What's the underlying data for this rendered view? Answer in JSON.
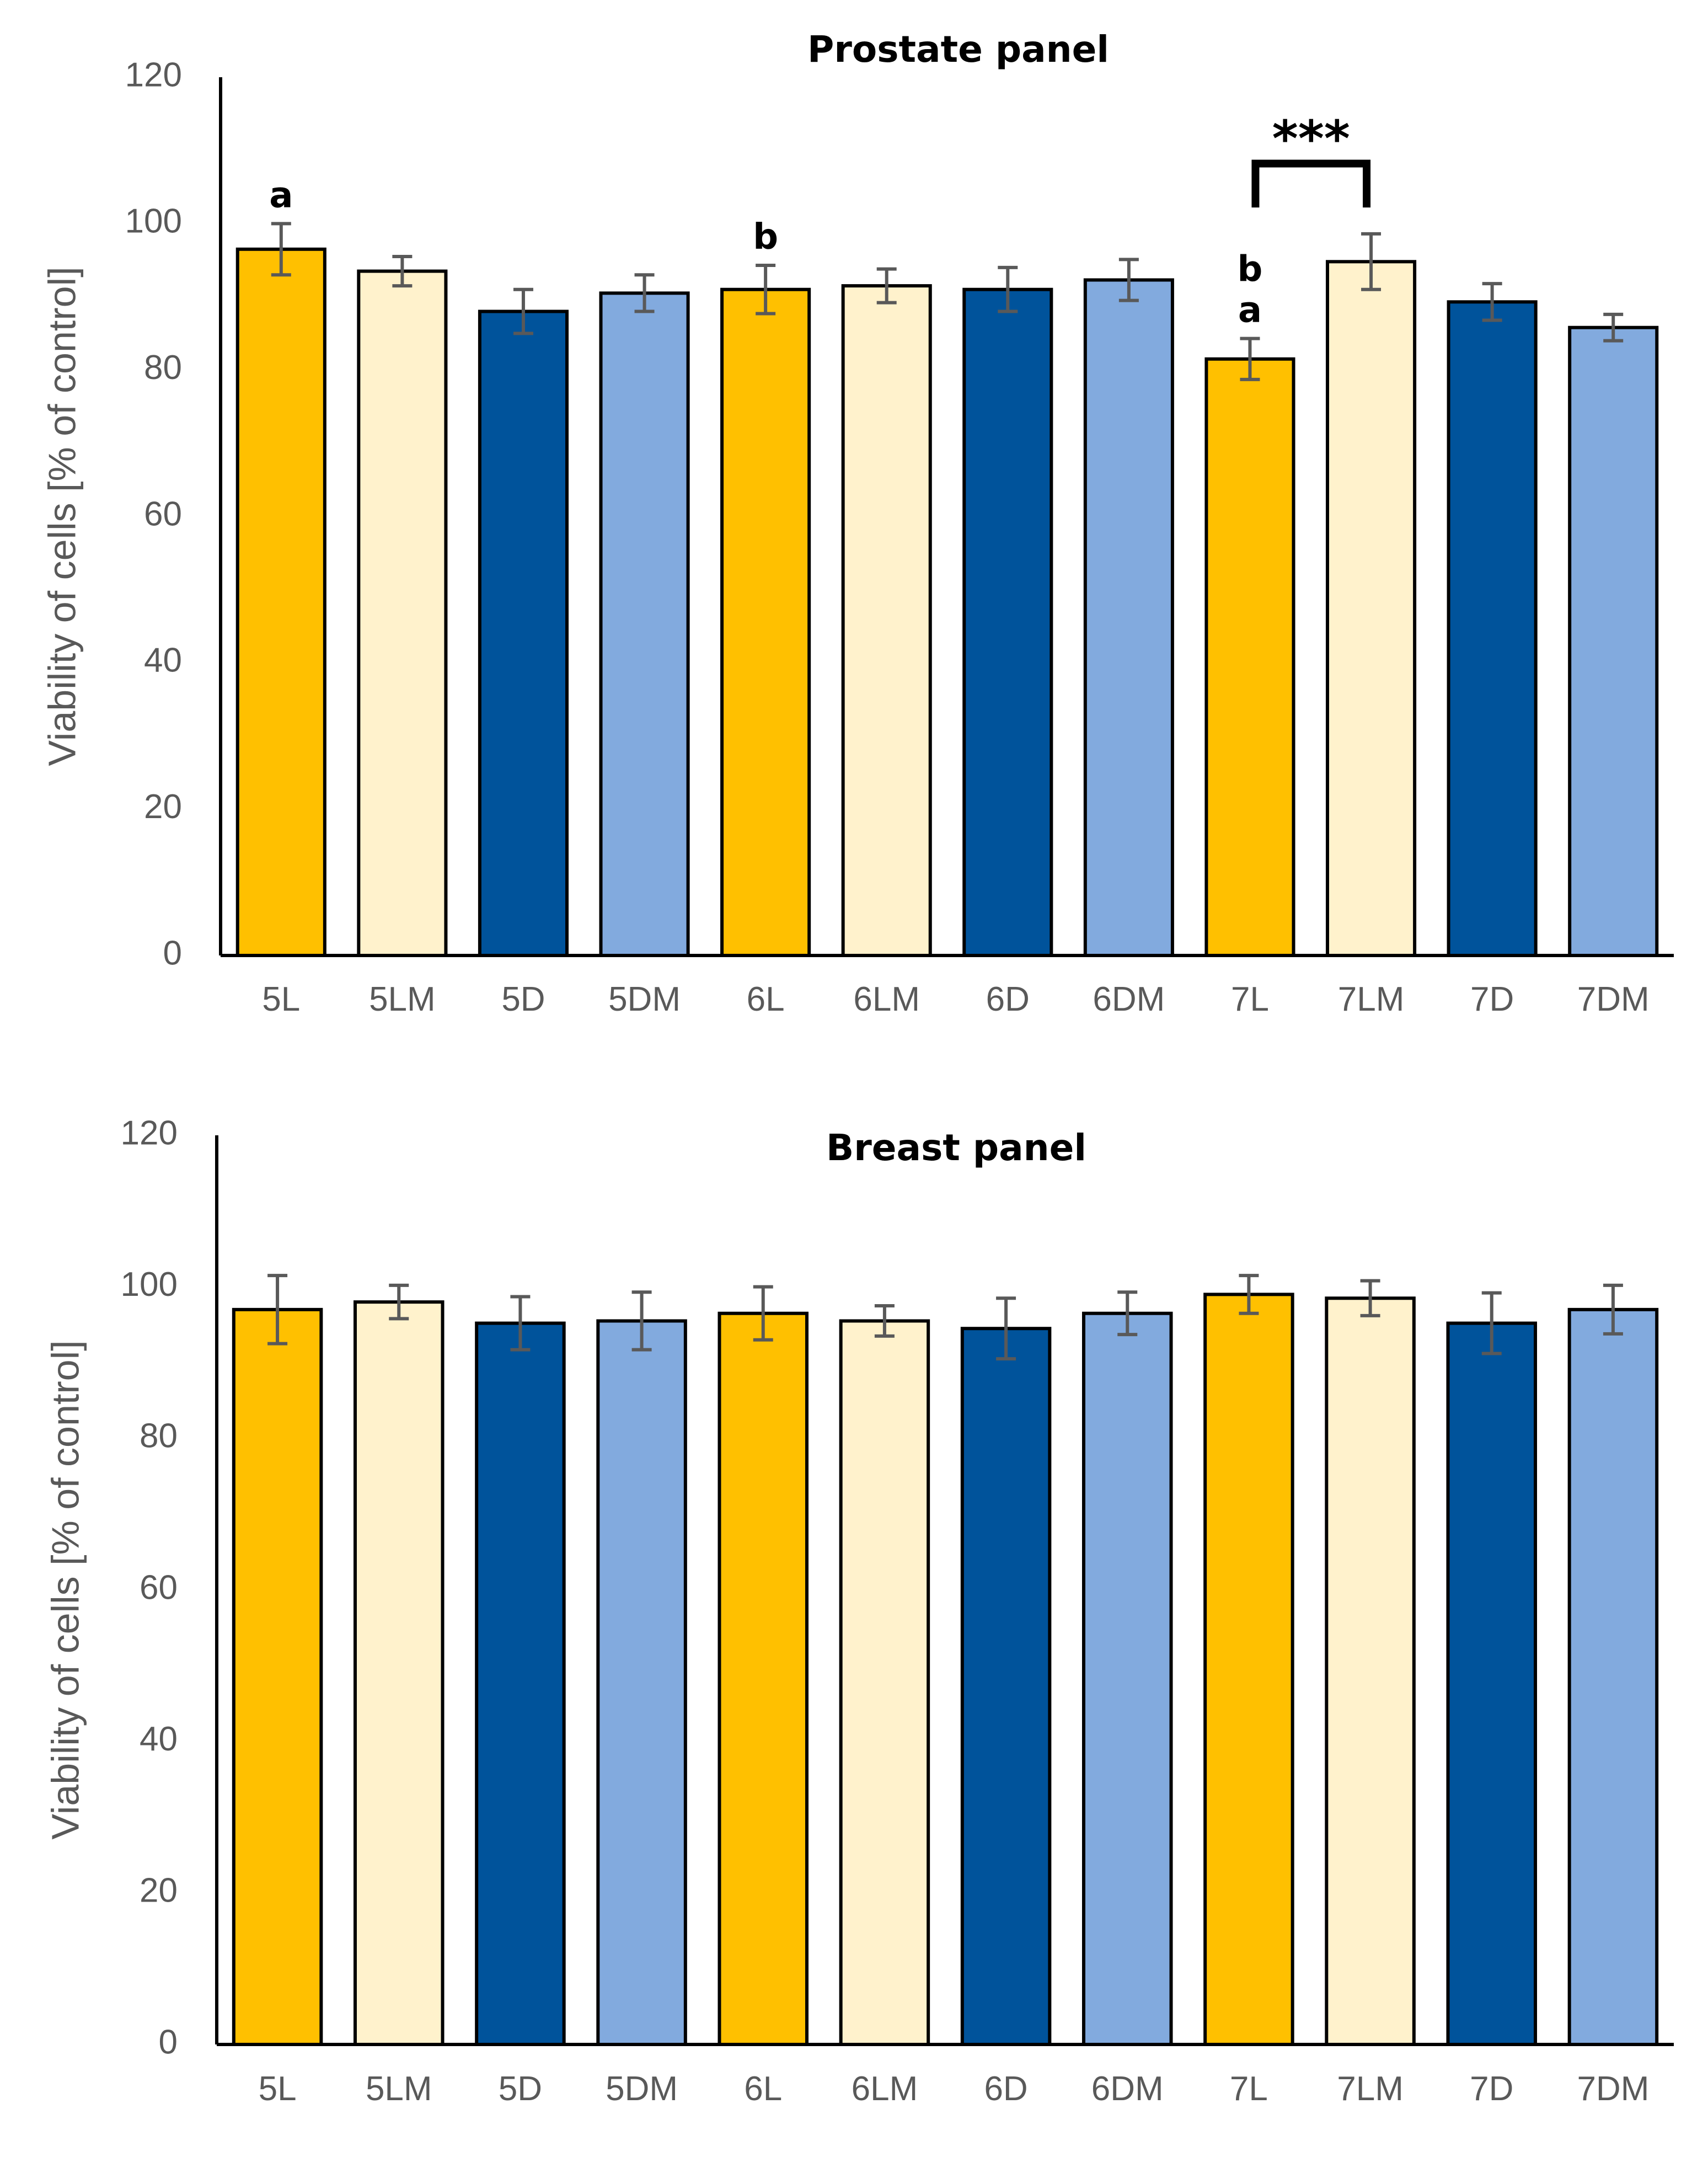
{
  "colors": {
    "light": "#FFC000",
    "light_mod": "#FFF2CC",
    "dark": "#00539B",
    "dark_mod": "#82AADE",
    "error_bar": "#595959",
    "bar_edge": "#000000"
  },
  "chart_data": [
    {
      "type": "bar",
      "title": "Prostate panel",
      "xlabel": "",
      "ylabel": "Viability of cells [% of control]",
      "ylim": [
        0,
        120
      ],
      "yticks": [
        "0",
        "20",
        "40",
        "60",
        "80",
        "100",
        "120"
      ],
      "categories": [
        "5L",
        "5LM",
        "5D",
        "5DM",
        "6L",
        "6LM",
        "6D",
        "6DM",
        "7L",
        "7LM",
        "7D",
        "7DM"
      ],
      "values": [
        96.5,
        93.5,
        88,
        90.5,
        91,
        91.5,
        91,
        92.3,
        81.5,
        94.8,
        89.3,
        85.8
      ],
      "errors": [
        3.5,
        2,
        3,
        2.5,
        3.3,
        2.3,
        3,
        2.8,
        2.8,
        3.8,
        2.5,
        1.8
      ],
      "colors": [
        "light",
        "light_mod",
        "dark",
        "dark_mod",
        "light",
        "light_mod",
        "dark",
        "dark_mod",
        "light",
        "light_mod",
        "dark",
        "dark_mod"
      ],
      "bar_annotations": [
        {
          "category": "5L",
          "lines": [
            "a"
          ]
        },
        {
          "category": "6L",
          "lines": [
            "b"
          ]
        },
        {
          "category": "7L",
          "lines": [
            "b",
            "a"
          ]
        }
      ],
      "significance": {
        "from": "7L",
        "to": "7LM",
        "label": "***"
      }
    },
    {
      "type": "bar",
      "title": "Breast panel",
      "xlabel": "",
      "ylabel": "Viability of cells [% of control]",
      "ylim": [
        0,
        120
      ],
      "yticks": [
        "0",
        "20",
        "40",
        "60",
        "80",
        "100",
        "120"
      ],
      "categories": [
        "5L",
        "5LM",
        "5D",
        "5DM",
        "6L",
        "6LM",
        "6D",
        "6DM",
        "7L",
        "7LM",
        "7D",
        "7DM"
      ],
      "values": [
        97,
        98,
        95.2,
        95.5,
        96.5,
        95.5,
        94.5,
        96.5,
        99,
        98.5,
        95.2,
        97
      ],
      "errors": [
        4.5,
        2.2,
        3.5,
        3.8,
        3.5,
        2,
        4,
        2.8,
        2.5,
        2.3,
        4,
        3.2
      ],
      "colors": [
        "light",
        "light_mod",
        "dark",
        "dark_mod",
        "light",
        "light_mod",
        "dark",
        "dark_mod",
        "light",
        "light_mod",
        "dark",
        "dark_mod"
      ],
      "bar_annotations": [],
      "significance": null
    }
  ]
}
